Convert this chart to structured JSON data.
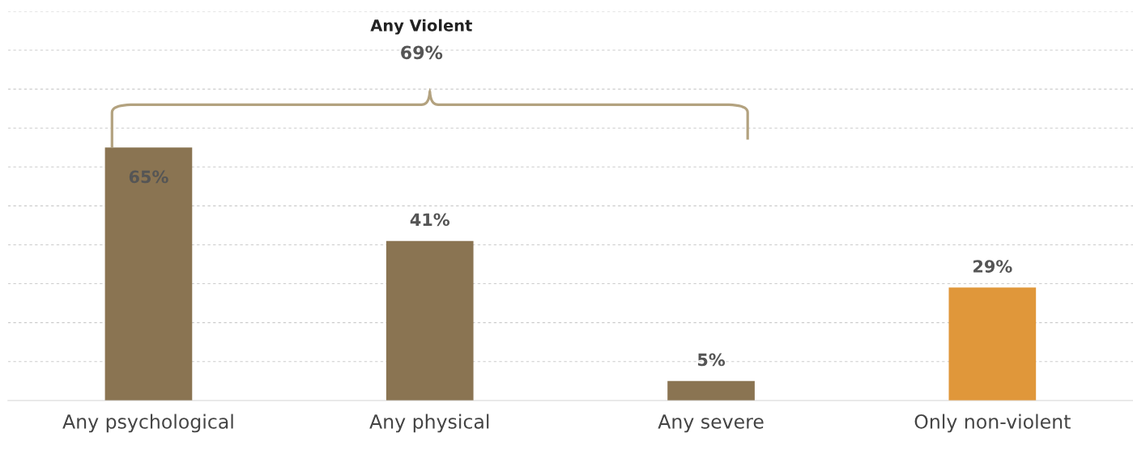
{
  "chart_data": {
    "type": "bar",
    "categories": [
      "Any psychological",
      "Any physical",
      "Any severe",
      "Only non-violent"
    ],
    "values": [
      65,
      41,
      5,
      29
    ],
    "colors": [
      "#8a7452",
      "#8a7452",
      "#8a7452",
      "#e0973a"
    ],
    "value_labels": [
      "65%",
      "41%",
      "5%",
      "29%"
    ],
    "annotations": [
      "Any Violent",
      "69%"
    ],
    "ylim": [
      0,
      100
    ],
    "yticks": [
      {
        "value": 10,
        "label": null
      },
      {
        "value": 20,
        "label": null
      },
      {
        "value": 30,
        "label": null
      },
      {
        "value": 40,
        "label": null
      },
      {
        "value": 50,
        "label": null
      },
      {
        "value": 60,
        "label": null
      },
      {
        "value": 70,
        "label": null
      },
      {
        "value": 80,
        "label": null
      },
      {
        "value": 90,
        "label": null
      },
      {
        "value": 100,
        "label": null
      }
    ],
    "grid": "y",
    "tick_labels": "x"
  }
}
